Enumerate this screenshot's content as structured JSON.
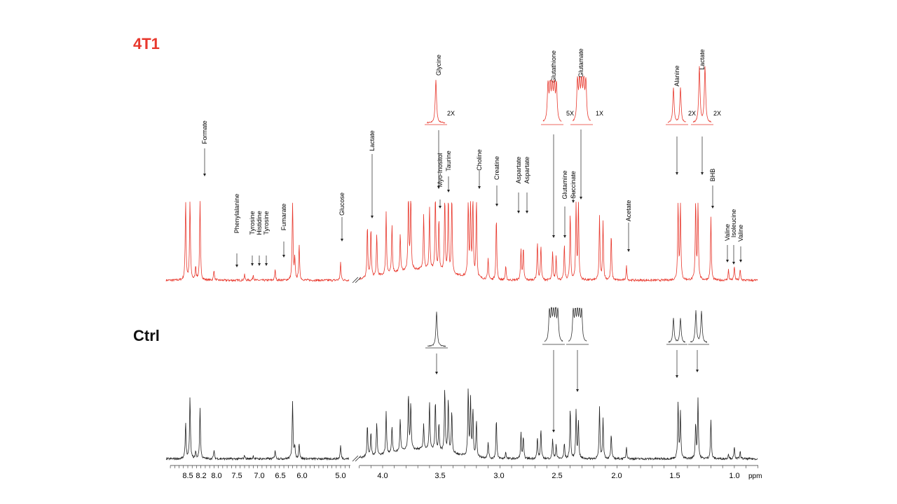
{
  "panels": [
    {
      "label": "4T1"
    },
    {
      "label": "Ctrl"
    }
  ],
  "annotations": [
    "Formate",
    "Phenylalanine",
    "Tyrosine",
    "Histidine",
    "Tyrosine",
    "Fumarate",
    "Glucose",
    "Lactate",
    "Myo-Inositol",
    "Taurine",
    "Choline",
    "Creatine",
    "Aspartate",
    "Aspartate",
    "Glutamine",
    "Succinate",
    "Glutathione",
    "Glutamate",
    "Alanine",
    "Lactate",
    "Acetate",
    "BHB",
    "Valine",
    "Isoleucine",
    "Valine",
    "Glycine"
  ],
  "insets": {
    "scales": [
      "2X",
      "5X",
      "1X",
      "2X",
      "2X"
    ]
  },
  "axis": {
    "unit": "ppm",
    "ticks": [
      "8.5",
      "8.2",
      "8.0",
      "7.5",
      "7.0",
      "6.5",
      "6.0",
      "5.0",
      "4.0",
      "3.5",
      "3.0",
      "2.5",
      "2.0",
      "1.5",
      "1.0"
    ]
  }
}
